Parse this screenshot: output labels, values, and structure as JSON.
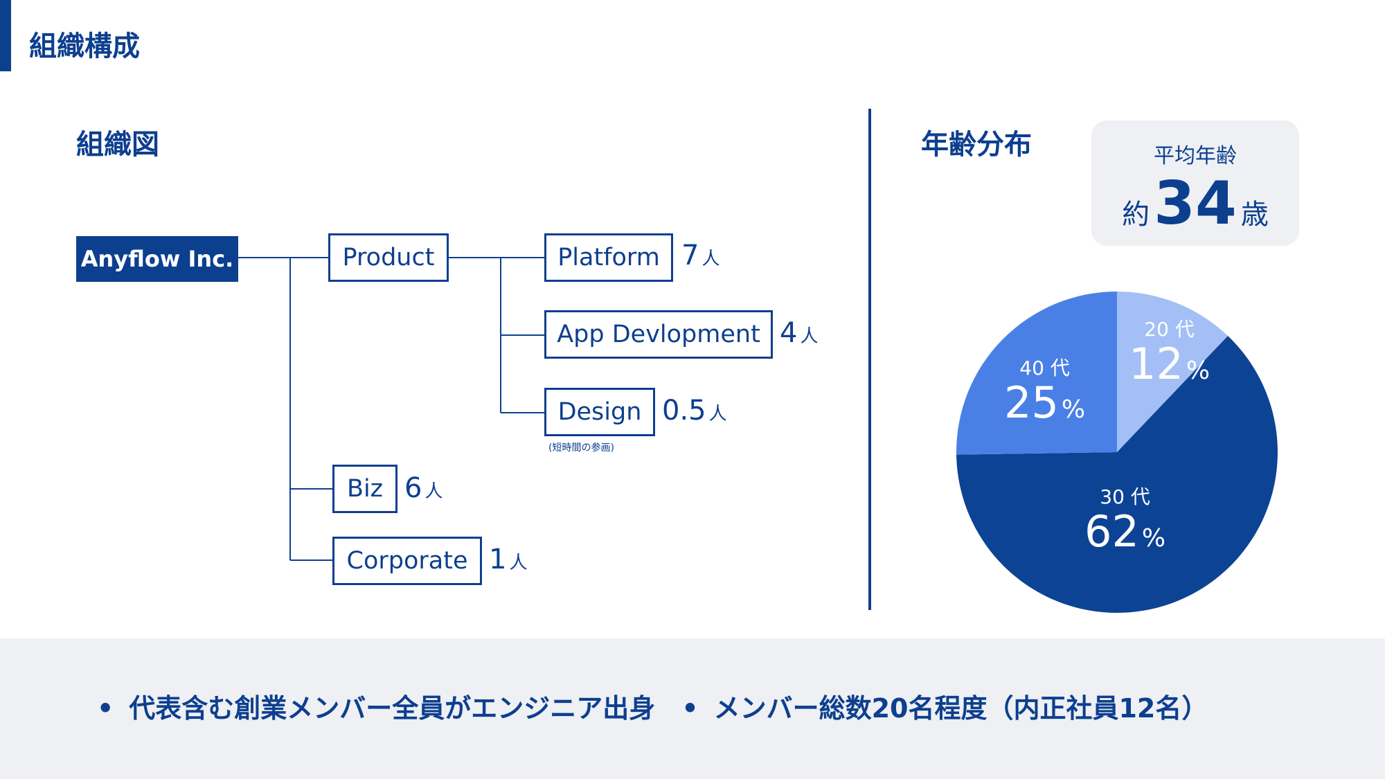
{
  "header": {
    "title": "組織構成"
  },
  "org": {
    "section_title": "組織図",
    "root": "Anyflow Inc.",
    "product": "Product",
    "teams": [
      {
        "label": "Platform",
        "count": "7",
        "unit": "人"
      },
      {
        "label": "App Devlopment",
        "count": "4",
        "unit": "人"
      },
      {
        "label": "Design",
        "count": "0.5",
        "unit": "人",
        "note": "(短時間の参画)"
      }
    ],
    "departments": [
      {
        "label": "Biz",
        "count": "6",
        "unit": "人"
      },
      {
        "label": "Corporate",
        "count": "1",
        "unit": "人"
      }
    ]
  },
  "age": {
    "section_title": "年齢分布",
    "avg_label": "平均年齢",
    "avg_prefix": "約",
    "avg_value": "34",
    "avg_suffix": "歳"
  },
  "chart_data": {
    "type": "pie",
    "slices": [
      {
        "label": "20 代",
        "value": 12,
        "color": "#a3bff6"
      },
      {
        "label": "30 代",
        "value": 62,
        "color": "#0d4394"
      },
      {
        "label": "40 代",
        "value": 25,
        "color": "#4a80e6"
      }
    ],
    "unit": "%"
  },
  "footer": {
    "bullets": [
      "代表含む創業メンバー全員がエンジニア出身",
      "メンバー総数20名程度（内正社員12名）"
    ]
  }
}
